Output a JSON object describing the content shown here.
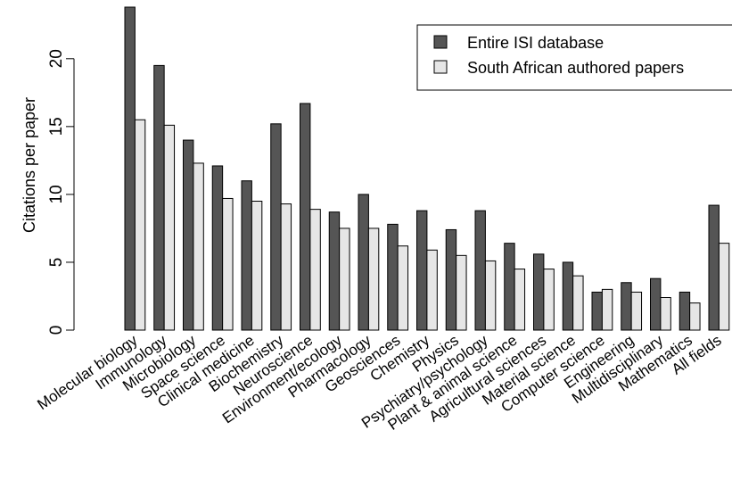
{
  "chart_data": {
    "type": "bar",
    "ylabel": "Citations per paper",
    "xlabel": "",
    "ylim": [
      0,
      24
    ],
    "yticks": [
      0,
      5,
      10,
      15,
      20
    ],
    "grid": false,
    "legend_position": "top-right",
    "categories": [
      "Molecular biology",
      "Immunology",
      "Microbiology",
      "Space science",
      "Clinical medicine",
      "Biochemistry",
      "Neuroscience",
      "Environment/ecology",
      "Pharmacology",
      "Geosciences",
      "Chemistry",
      "Physics",
      "Psychiatry/psychology",
      "Plant & animal science",
      "Agricultural sciences",
      "Material science",
      "Computer science",
      "Engineering",
      "Multidisciplinary",
      "Mathematics",
      "All fields"
    ],
    "series": [
      {
        "name": "Entire ISI database",
        "color": "#555555",
        "values": [
          23.8,
          19.5,
          14.0,
          12.1,
          11.0,
          15.2,
          16.7,
          8.7,
          10.0,
          7.8,
          8.8,
          7.4,
          8.8,
          6.4,
          5.6,
          5.0,
          2.8,
          3.5,
          3.8,
          2.8,
          9.2
        ]
      },
      {
        "name": "South African authored papers",
        "color": "#e6e6e6",
        "values": [
          15.5,
          15.1,
          12.3,
          9.7,
          9.5,
          9.3,
          8.9,
          7.5,
          7.5,
          6.2,
          5.9,
          5.5,
          5.1,
          4.5,
          4.5,
          4.0,
          3.0,
          2.8,
          2.4,
          2.0,
          6.4
        ]
      }
    ]
  }
}
